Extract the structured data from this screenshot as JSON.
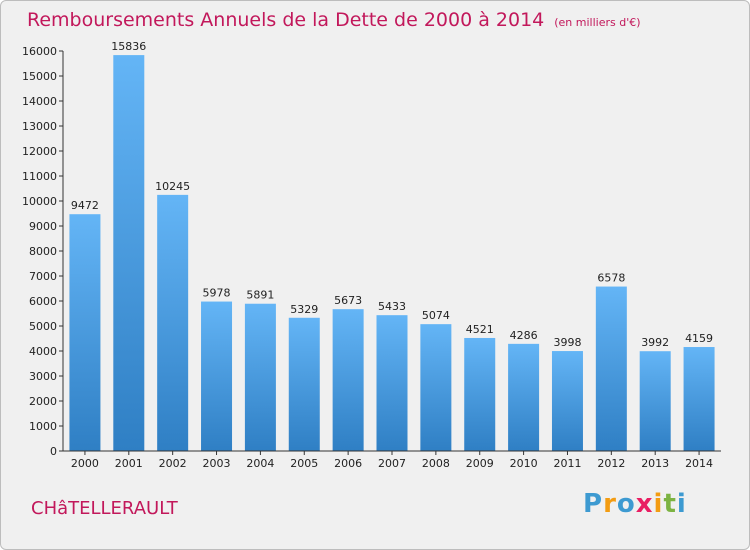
{
  "title": "Remboursements Annuels de la Dette de 2000 à 2014",
  "unit": "(en milliers d'€)",
  "commune": "CHâTELLERAULT",
  "logo": {
    "letters": [
      "P",
      "r",
      "o",
      "x",
      "i",
      "t",
      "i"
    ],
    "colors": [
      "#3d9ad1",
      "#f39c12",
      "#3d9ad1",
      "#e91e63",
      "#f39c12",
      "#7cb342",
      "#3d9ad1"
    ]
  },
  "chart_data": {
    "type": "bar",
    "categories": [
      "2000",
      "2001",
      "2002",
      "2003",
      "2004",
      "2005",
      "2006",
      "2007",
      "2008",
      "2009",
      "2010",
      "2011",
      "2012",
      "2013",
      "2014"
    ],
    "values": [
      9472,
      15836,
      10245,
      5978,
      5891,
      5329,
      5673,
      5433,
      5074,
      4521,
      4286,
      3998,
      6578,
      3992,
      4159
    ],
    "ylim": [
      0,
      16000
    ],
    "yticks": [
      0,
      1000,
      2000,
      3000,
      4000,
      5000,
      6000,
      7000,
      8000,
      9000,
      10000,
      11000,
      12000,
      13000,
      14000,
      15000,
      16000
    ],
    "grid": false,
    "bar_color": "#4a9de0"
  }
}
